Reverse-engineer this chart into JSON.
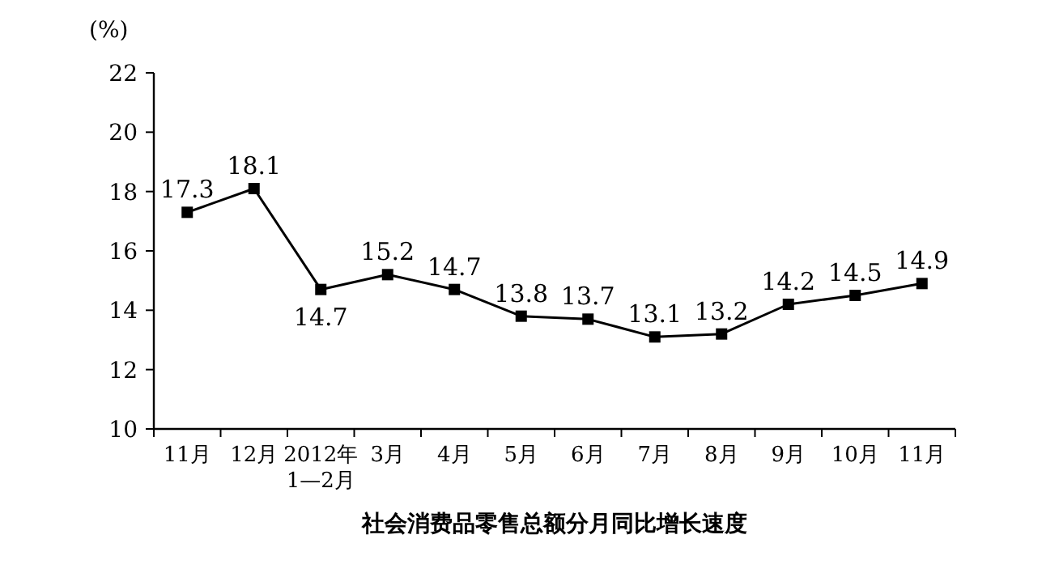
{
  "chart_data": {
    "type": "line",
    "title": "社会消费品零售总额分月同比增长速度",
    "ylabel": "(%)",
    "categories": [
      "11月",
      "12月",
      "2012年\n1—2月",
      "3月",
      "4月",
      "5月",
      "6月",
      "7月",
      "8月",
      "9月",
      "10月",
      "11月"
    ],
    "values": [
      17.3,
      18.1,
      14.7,
      15.2,
      14.7,
      13.8,
      13.7,
      13.1,
      13.2,
      14.2,
      14.5,
      14.9
    ],
    "data_labels": true,
    "color": "#000000",
    "marker": "square",
    "line_style": "solid",
    "ylim": [
      10,
      22
    ],
    "yticks": [
      10,
      12,
      14,
      16,
      18,
      20,
      22
    ]
  }
}
